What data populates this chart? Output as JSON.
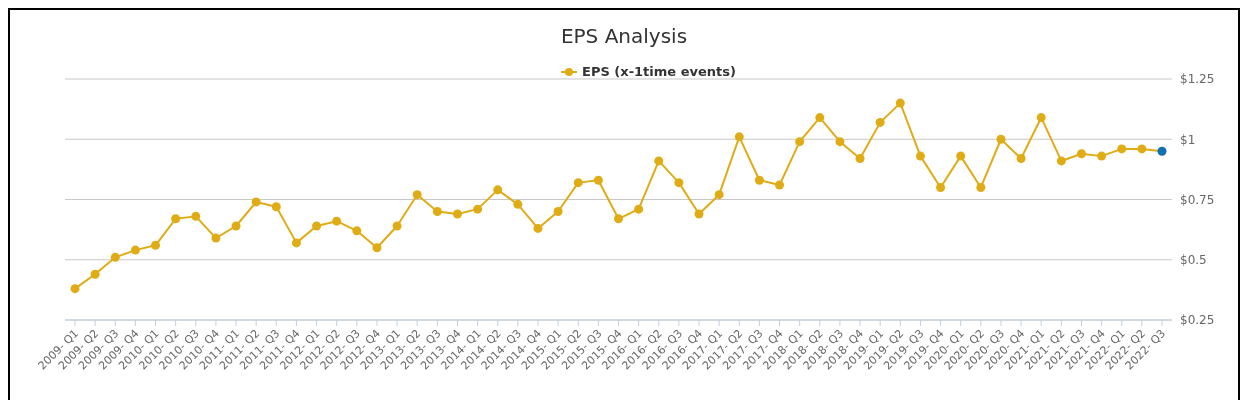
{
  "chart_data": {
    "type": "line",
    "title": "EPS Analysis",
    "categories": [
      "2009- Q1",
      "2009- Q2",
      "2009- Q3",
      "2009- Q4",
      "2010- Q1",
      "2010- Q2",
      "2010- Q3",
      "2010- Q4",
      "2011- Q1",
      "2011- Q2",
      "2011- Q3",
      "2011- Q4",
      "2012- Q1",
      "2012- Q2",
      "2012- Q3",
      "2012- Q4",
      "2013- Q1",
      "2013- Q2",
      "2013- Q3",
      "2013- Q4",
      "2014- Q1",
      "2014- Q2",
      "2014- Q3",
      "2014- Q4",
      "2015- Q1",
      "2015- Q2",
      "2015- Q3",
      "2015- Q4",
      "2016- Q1",
      "2016- Q2",
      "2016- Q3",
      "2016- Q4",
      "2017- Q1",
      "2017- Q2",
      "2017- Q3",
      "2017- Q4",
      "2018- Q1",
      "2018- Q2",
      "2018- Q3",
      "2018- Q4",
      "2019- Q1",
      "2019- Q2",
      "2019- Q3",
      "2019- Q4",
      "2020- Q1",
      "2020- Q2",
      "2020- Q3",
      "2020- Q4",
      "2021- Q1",
      "2021- Q2",
      "2021- Q3",
      "2021- Q4",
      "2022- Q1",
      "2022- Q2",
      "2022- Q3"
    ],
    "series": [
      {
        "name": "EPS (x-1time events)",
        "color": "#e0ac16",
        "values": [
          0.38,
          0.44,
          0.51,
          0.54,
          0.56,
          0.67,
          0.68,
          0.59,
          0.64,
          0.74,
          0.72,
          0.57,
          0.64,
          0.66,
          0.62,
          0.55,
          0.64,
          0.77,
          0.7,
          0.69,
          0.71,
          0.79,
          0.73,
          0.63,
          0.7,
          0.82,
          0.83,
          0.67,
          0.71,
          0.91,
          0.82,
          0.69,
          0.77,
          1.01,
          0.83,
          0.81,
          0.99,
          1.09,
          0.99,
          0.92,
          1.07,
          1.15,
          0.93,
          0.8,
          0.93,
          0.8,
          1.0,
          0.92,
          1.09,
          0.91,
          0.94,
          0.93,
          0.96,
          0.96,
          0.95
        ],
        "colors": [
          "#e0ac16",
          "#e0ac16",
          "#e0ac16",
          "#e0ac16",
          "#e0ac16",
          "#e0ac16",
          "#e0ac16",
          "#e0ac16",
          "#e0ac16",
          "#e0ac16",
          "#e0ac16",
          "#e0ac16",
          "#e0ac16",
          "#e0ac16",
          "#e0ac16",
          "#e0ac16",
          "#e0ac16",
          "#e0ac16",
          "#e0ac16",
          "#e0ac16",
          "#e0ac16",
          "#e0ac16",
          "#e0ac16",
          "#e0ac16",
          "#e0ac16",
          "#e0ac16",
          "#e0ac16",
          "#e0ac16",
          "#e0ac16",
          "#e0ac16",
          "#e0ac16",
          "#e0ac16",
          "#e0ac16",
          "#e0ac16",
          "#e0ac16",
          "#e0ac16",
          "#e0ac16",
          "#e0ac16",
          "#e0ac16",
          "#e0ac16",
          "#e0ac16",
          "#e0ac16",
          "#e0ac16",
          "#e0ac16",
          "#e0ac16",
          "#e0ac16",
          "#e0ac16",
          "#e0ac16",
          "#e0ac16",
          "#e0ac16",
          "#e0ac16",
          "#e0ac16",
          "#e0ac16",
          "#e0ac16",
          "#1070b0"
        ]
      }
    ],
    "ylim": [
      0.25,
      1.25
    ],
    "yticks": [
      {
        "value": 0.25,
        "label": "$0.25"
      },
      {
        "value": 0.5,
        "label": "$0.5"
      },
      {
        "value": 0.75,
        "label": "$0.75"
      },
      {
        "value": 1,
        "label": "$1"
      },
      {
        "value": 1.25,
        "label": "$1.25"
      }
    ],
    "grid": "y",
    "legend": "top",
    "marker": "circle",
    "line_style": "solid"
  }
}
